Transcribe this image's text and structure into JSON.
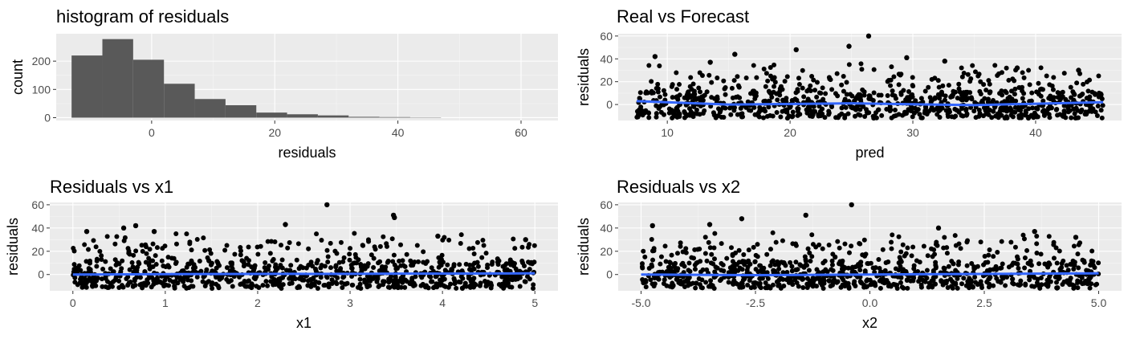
{
  "colors": {
    "panel_bg": "#ebebeb",
    "grid_major": "#ffffff",
    "bar_fill": "#595959",
    "point": "#000000",
    "smooth_line": "#3366ff",
    "tick_text": "#4d4d4d"
  },
  "chart_data": [
    {
      "type": "bar",
      "title": "histogram of residuals",
      "xlabel": "residuals",
      "ylabel": "count",
      "xlim": [
        -15.5,
        66
      ],
      "ylim": [
        -10,
        297
      ],
      "xticks": [
        0,
        20,
        40,
        60
      ],
      "yticks": [
        0,
        100,
        200
      ],
      "grid": true,
      "bins": [
        {
          "start": -13,
          "end": -8,
          "count": 220
        },
        {
          "start": -8,
          "end": -3,
          "count": 278
        },
        {
          "start": -3,
          "end": 2,
          "count": 205
        },
        {
          "start": 2,
          "end": 7,
          "count": 120
        },
        {
          "start": 7,
          "end": 12,
          "count": 66
        },
        {
          "start": 12,
          "end": 17,
          "count": 44
        },
        {
          "start": 17,
          "end": 22,
          "count": 18
        },
        {
          "start": 22,
          "end": 27,
          "count": 12
        },
        {
          "start": 27,
          "end": 32,
          "count": 8
        },
        {
          "start": 32,
          "end": 37,
          "count": 3
        },
        {
          "start": 37,
          "end": 42,
          "count": 2
        },
        {
          "start": 42,
          "end": 47,
          "count": 1
        }
      ]
    },
    {
      "type": "scatter",
      "title": "Real vs Forecast",
      "xlabel": "pred",
      "ylabel": "residuals",
      "xlim": [
        6,
        47
      ],
      "ylim": [
        -14,
        62
      ],
      "xticks": [
        10,
        20,
        30,
        40
      ],
      "yticks": [
        0,
        20,
        40,
        60
      ],
      "grid": true,
      "smooth": {
        "x": [
          7.5,
          15,
          25,
          35,
          45.5
        ],
        "y": [
          3,
          0,
          1,
          -0.5,
          2
        ]
      },
      "highlight_points": [
        {
          "x": 9,
          "y": 42
        },
        {
          "x": 13.5,
          "y": 37
        },
        {
          "x": 15.5,
          "y": 44
        },
        {
          "x": 20.5,
          "y": 48
        },
        {
          "x": 24.8,
          "y": 51
        },
        {
          "x": 26.4,
          "y": 60
        },
        {
          "x": 29.5,
          "y": 41
        },
        {
          "x": 32.6,
          "y": 38
        },
        {
          "x": 38.5,
          "y": 32
        },
        {
          "x": 43.5,
          "y": 30
        }
      ]
    },
    {
      "type": "scatter",
      "title": "Residuals vs  x1",
      "xlabel": "x1",
      "ylabel": "residuals",
      "xlim": [
        -0.25,
        5.25
      ],
      "ylim": [
        -14,
        62
      ],
      "xticks": [
        0,
        1,
        2,
        3,
        4,
        5
      ],
      "yticks": [
        0,
        20,
        40,
        60
      ],
      "grid": true,
      "smooth": {
        "x": [
          0,
          1,
          2,
          3,
          4,
          5
        ],
        "y": [
          0,
          0.3,
          0.5,
          0.6,
          0.8,
          1
        ]
      },
      "highlight_points": [
        {
          "x": 0.15,
          "y": 37
        },
        {
          "x": 0.55,
          "y": 40
        },
        {
          "x": 0.68,
          "y": 42
        },
        {
          "x": 0.88,
          "y": 37
        },
        {
          "x": 2.3,
          "y": 43
        },
        {
          "x": 2.75,
          "y": 60
        },
        {
          "x": 3.47,
          "y": 51
        },
        {
          "x": 3.48,
          "y": 49
        },
        {
          "x": 3.95,
          "y": 33
        },
        {
          "x": 4.9,
          "y": 30
        }
      ]
    },
    {
      "type": "scatter",
      "title": "Residuals vs  x2",
      "xlabel": "x2",
      "ylabel": "residuals",
      "xlim": [
        -5.5,
        5.5
      ],
      "ylim": [
        -14,
        62
      ],
      "xticks": [
        -5.0,
        -2.5,
        0.0,
        2.5,
        5.0
      ],
      "xtick_labels": [
        "-5.0",
        "-2.5",
        "0.0",
        "2.5",
        "5.0"
      ],
      "yticks": [
        0,
        20,
        40,
        60
      ],
      "grid": true,
      "smooth": {
        "x": [
          -5,
          -2.5,
          0,
          2.5,
          5
        ],
        "y": [
          0,
          -0.5,
          0,
          0.5,
          1
        ]
      },
      "highlight_points": [
        {
          "x": -4.75,
          "y": 42
        },
        {
          "x": -3.5,
          "y": 43
        },
        {
          "x": -2.8,
          "y": 48
        },
        {
          "x": -1.4,
          "y": 51
        },
        {
          "x": -0.4,
          "y": 60
        },
        {
          "x": 1.5,
          "y": 40
        },
        {
          "x": 3.6,
          "y": 37
        },
        {
          "x": 4.5,
          "y": 32
        }
      ]
    }
  ]
}
